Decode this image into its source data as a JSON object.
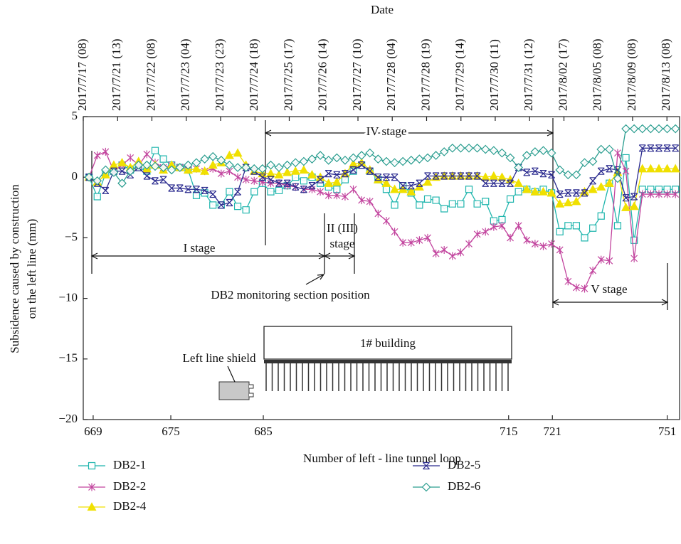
{
  "chart_data": {
    "type": "line",
    "top_label": "Date",
    "xlabel": "Number of left - line tunnel loop",
    "ylabel": [
      "Subsidence caused by construction",
      "on the left line (mm)"
    ],
    "x": [
      0,
      1,
      2,
      3,
      4,
      5,
      6,
      7,
      8,
      9,
      10,
      11,
      12,
      13,
      14,
      15,
      16,
      17,
      18,
      19,
      20,
      21,
      22,
      23,
      24,
      25,
      26,
      27,
      28,
      29,
      30,
      31,
      32,
      33,
      34,
      35,
      36,
      37,
      38,
      39,
      40,
      41,
      42,
      43,
      44,
      45,
      46,
      47,
      48,
      49,
      50,
      51,
      52,
      53,
      54,
      55,
      56,
      57,
      58,
      59,
      60,
      61,
      62,
      63,
      64,
      65,
      66,
      67,
      68,
      69,
      70,
      71
    ],
    "xlim": [
      -0.7,
      71.5
    ],
    "ylim": [
      -20,
      5
    ],
    "yticks": [
      5,
      0,
      {
        "value": -5,
        "label": "−5"
      },
      {
        "value": -10,
        "label": "−10"
      },
      {
        "value": -15,
        "label": "−15"
      },
      {
        "value": -20,
        "label": "−20"
      }
    ],
    "xticks": [
      {
        "value": 0.5,
        "label": "669"
      },
      {
        "value": 9.9,
        "label": "675"
      },
      {
        "value": 21.1,
        "label": "685"
      },
      {
        "value": 50.8,
        "label": "715"
      },
      {
        "value": 56.1,
        "label": "721"
      },
      {
        "value": 70,
        "label": "751"
      }
    ],
    "x2ticks": [
      {
        "value": -0.7,
        "label": "2017/7/17 (08)"
      },
      {
        "value": 3.46,
        "label": "2017/7/21 (13)"
      },
      {
        "value": 7.61,
        "label": "2017/7/22 (08)"
      },
      {
        "value": 11.77,
        "label": "2017/7/23 (04)"
      },
      {
        "value": 15.93,
        "label": "2017/7/23 (23)"
      },
      {
        "value": 20.09,
        "label": "2017/7/24 (18)"
      },
      {
        "value": 24.24,
        "label": "2017/7/25 (17)"
      },
      {
        "value": 28.4,
        "label": "2017/7/26 (14)"
      },
      {
        "value": 32.56,
        "label": "2017/7/27 (10)"
      },
      {
        "value": 36.71,
        "label": "2017/7/28 (04)"
      },
      {
        "value": 40.87,
        "label": "2017/7/28 (19)"
      },
      {
        "value": 45.03,
        "label": "2017/7/29 (14)"
      },
      {
        "value": 49.18,
        "label": "2017/7/30 (11)"
      },
      {
        "value": 53.34,
        "label": "2017/7/31 (12)"
      },
      {
        "value": 57.5,
        "label": "2017/8/02 (17)"
      },
      {
        "value": 61.66,
        "label": "2017/8/05 (08)"
      },
      {
        "value": 65.81,
        "label": "2017/8/09 (08)"
      },
      {
        "value": 69.97,
        "label": "2017/8/13 (08)"
      }
    ],
    "annotations": [
      "IV stage",
      "I stage",
      "II (III)",
      "stage",
      "DB2 monitoring section position",
      "V stage",
      "1# building",
      "Left line shield"
    ],
    "series": [
      {
        "name": "DB2-1",
        "color": "#1fb5ad",
        "marker": "square",
        "values": [
          0,
          -1.6,
          0.3,
          0.5,
          1,
          0.6,
          0.8,
          0.5,
          2.2,
          1.5,
          1,
          0.8,
          0.6,
          -1.5,
          -1.3,
          -2.3,
          -2.3,
          -1.2,
          -2.4,
          -2.7,
          -1.2,
          -0.5,
          -1.2,
          -1.1,
          -0.7,
          0,
          -0.3,
          0,
          -0.5,
          -0.8,
          -1,
          -0.2,
          0.5,
          1,
          0.5,
          -0.2,
          -1,
          -2.3,
          -0.7,
          -1.3,
          -2.3,
          -1.8,
          -1.9,
          -2.6,
          -2.2,
          -2.2,
          -1,
          -2.2,
          -2,
          -3.6,
          -3.5,
          -1.8,
          -1.2,
          -1,
          -1.2,
          -1,
          -1.3,
          -4.5,
          -4,
          -4,
          -5,
          -4.2,
          -3.2,
          -0.5,
          -4,
          1.6,
          -5.2,
          -1,
          -1,
          -1,
          -1,
          -1
        ]
      },
      {
        "name": "DB2-2",
        "color": "#c2449e",
        "marker": "asterisk",
        "values": [
          0,
          1.8,
          2.1,
          0.5,
          1,
          1.6,
          1,
          1.9,
          1.2,
          0.8,
          1,
          0.8,
          0.6,
          0.7,
          0.5,
          0.7,
          0.3,
          0.5,
          0,
          -0.2,
          -0.3,
          -0.4,
          -0.5,
          -0.5,
          -0.7,
          -0.8,
          -1,
          -1,
          -1.2,
          -1.5,
          -1.5,
          -1.6,
          -1,
          -1.9,
          -2,
          -3,
          -3.6,
          -4.5,
          -5.4,
          -5.4,
          -5.2,
          -5,
          -6.3,
          -6,
          -6.5,
          -6.2,
          -5.5,
          -4.7,
          -4.5,
          -4.1,
          -4,
          -5,
          -4,
          -5.2,
          -5.5,
          -5.7,
          -5.5,
          -6,
          -8.6,
          -9.1,
          -9.2,
          -7.7,
          -6.8,
          -6.9,
          2,
          0.5,
          -6.7,
          -1.4,
          -1.4,
          -1.4,
          -1.4,
          -1.4
        ]
      },
      {
        "name": "DB2-4",
        "color": "#f0e000",
        "marker": "triangle",
        "values": [
          0,
          -0.4,
          0.2,
          1,
          1.2,
          0.8,
          1.3,
          0.7,
          1,
          0.6,
          1,
          0.8,
          0.6,
          0.7,
          0.5,
          1,
          1.2,
          1.8,
          2,
          1,
          0.5,
          0.3,
          0.3,
          0.2,
          0.4,
          0.5,
          0.6,
          0.2,
          0,
          -0.5,
          -0.4,
          0.3,
          1.1,
          1.2,
          0.6,
          -0.2,
          -0.5,
          -1,
          -1,
          -1.2,
          -0.8,
          -0.4,
          0,
          0.1,
          0.1,
          0.1,
          0.1,
          0.1,
          0,
          0.1,
          0,
          -0.2,
          -0.5,
          -1,
          -1.2,
          -1.2,
          -1.3,
          -2.2,
          -2.1,
          -2,
          -1.2,
          -1,
          -0.8,
          -0.5,
          0.4,
          -2.5,
          -2.4,
          0.7,
          0.7,
          0.7,
          0.7,
          0.7
        ]
      },
      {
        "name": "DB2-5",
        "color": "#2b2b8f",
        "marker": "star",
        "values": [
          0,
          -0.5,
          -1.1,
          0.5,
          0.5,
          0.2,
          0.8,
          0.1,
          -0.3,
          -0.2,
          -0.9,
          -0.9,
          -1,
          -1,
          -1.1,
          -1.4,
          -2.3,
          -2.1,
          -1.2,
          0.8,
          0.5,
          0,
          -0.2,
          -0.5,
          -0.5,
          -0.8,
          -1,
          -0.7,
          -0.2,
          0.3,
          0.2,
          0.3,
          0.6,
          1,
          0.5,
          0,
          0,
          0,
          -0.7,
          -0.7,
          -0.5,
          0.1,
          0.1,
          0.1,
          0.1,
          0.1,
          0.1,
          0.1,
          -0.5,
          -0.5,
          -0.5,
          -0.5,
          0.8,
          0.4,
          0.5,
          0.3,
          0.2,
          -1.4,
          -1.3,
          -1.3,
          -1.3,
          -0.3,
          0.5,
          0.7,
          0.6,
          -1.7,
          -1.6,
          2.4,
          2.4,
          2.4,
          2.4,
          2.4
        ]
      },
      {
        "name": "DB2-6",
        "color": "#2a9d8f",
        "marker": "diamond",
        "values": [
          0,
          -0.3,
          0.6,
          0.4,
          -0.5,
          0.5,
          1,
          1,
          0.9,
          0.8,
          0.6,
          0.8,
          1,
          1.2,
          1.5,
          1.7,
          1.4,
          1,
          0.8,
          0.8,
          0.7,
          0.7,
          1,
          0.8,
          1,
          1.2,
          1.3,
          1.5,
          1.8,
          1.4,
          1.6,
          1.4,
          1.6,
          1.8,
          2,
          1.5,
          1.3,
          1.2,
          1.3,
          1.4,
          1.5,
          1.6,
          1.8,
          2.1,
          2.4,
          2.4,
          2.4,
          2.4,
          2.3,
          2.2,
          2,
          1.6,
          0.8,
          1.8,
          2.1,
          2.2,
          2,
          0.6,
          0.2,
          0.2,
          1.2,
          1.3,
          2.3,
          2.3,
          -0.1,
          4,
          4,
          4,
          4,
          4,
          4,
          4
        ]
      }
    ]
  }
}
